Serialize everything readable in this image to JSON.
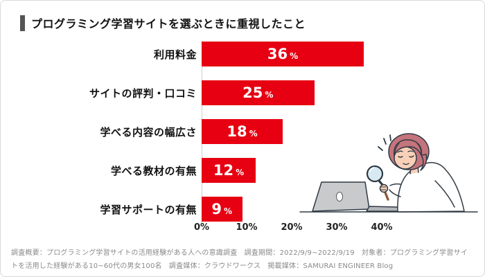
{
  "header": {
    "title": "プログラミング学習サイトを選ぶときに重視したこと"
  },
  "chart_data": {
    "type": "bar",
    "orientation": "horizontal",
    "title": "プログラミング学習サイトを選ぶときに重視したこと",
    "categories": [
      "利用料金",
      "サイトの評判・口コミ",
      "学べる内容の幅広さ",
      "学べる教材の有無",
      "学習サポートの有無"
    ],
    "values": [
      36,
      25,
      18,
      12,
      9
    ],
    "unit": "%",
    "value_labels_inside_bars": true,
    "x_ticks": [
      "0%",
      "10%",
      "20%",
      "30%",
      "40%"
    ],
    "xlim": [
      0,
      45
    ],
    "grid": false,
    "legend": false,
    "bar_color": "#e60012",
    "value_label_color": "#ffffff",
    "axis_line_color": "#cccccc"
  },
  "illustration": {
    "name": "woman-with-magnifying-glass-and-laptop",
    "colors": {
      "outline": "#2f3a44",
      "hair": "#c4747c",
      "skin": "#f8d0b8",
      "shirt": "#ffffff",
      "laptop": "#c8cacc",
      "lens": "#d7eaf3"
    }
  },
  "footer": {
    "line": "調査概要：プログラミング学習サイトの活用経験がある人への意識調査　調査期間：2022/9/9~2022/9/19　対象者：プログラミング学習サイトを活用した経験がある10~60代の男女100名　調査媒体：クラウドワークス　掲載媒体：SAMURAI ENGINEER Blog"
  }
}
